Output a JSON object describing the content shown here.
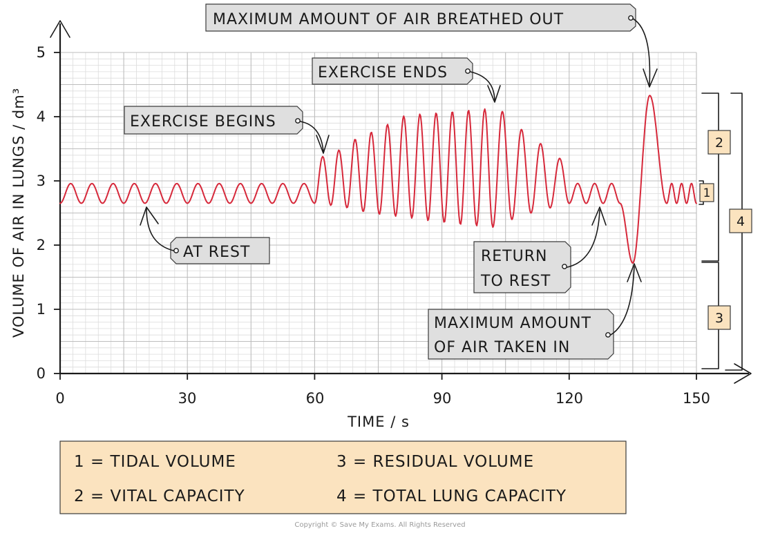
{
  "chart_data": {
    "type": "line",
    "xlabel": "TIME / s",
    "ylabel": "VOLUME OF AIR IN LUNGS / dm³",
    "xlim": [
      0,
      150
    ],
    "ylim": [
      0,
      5
    ],
    "x_ticks": [
      "0",
      "30",
      "60",
      "90",
      "120",
      "150"
    ],
    "y_ticks": [
      "0",
      "1",
      "2",
      "3",
      "4",
      "5"
    ],
    "grid": true,
    "line_color": "#d6283a",
    "series": [
      {
        "segments": [
          {
            "x0": 0,
            "x1": 60,
            "cycles": 12,
            "trough": 2.65,
            "peak": 2.96
          },
          {
            "x0": 60,
            "x1": 102,
            "peaks": [
              3.38,
              3.48,
              3.65,
              3.76,
              3.88,
              4.01,
              4.04,
              4.06,
              4.08,
              4.1,
              4.12
            ],
            "troughs": [
              2.62,
              2.58,
              2.52,
              2.48,
              2.45,
              2.42,
              2.38,
              2.35,
              2.32,
              2.3,
              2.28
            ]
          },
          {
            "x0": 102,
            "x1": 120,
            "peaks": [
              4.08,
              3.8,
              3.58,
              3.35
            ],
            "troughs": [
              2.4,
              2.5,
              2.58,
              2.65
            ]
          },
          {
            "x0": 120,
            "x1": 132,
            "cycles": 3,
            "trough": 2.65,
            "peak": 2.96
          },
          {
            "x0": 132,
            "x1": 135,
            "to": 1.72
          },
          {
            "x0": 135,
            "x1": 139,
            "to": 4.33
          },
          {
            "x0": 139,
            "x1": 143,
            "to": 2.65
          },
          {
            "x0": 143,
            "x1": 150,
            "cycles": 3,
            "trough": 2.65,
            "peak": 2.96
          }
        ]
      }
    ],
    "annotations": [
      {
        "text": "MAXIMUM AMOUNT OF AIR BREATHED OUT",
        "x": 139,
        "y": 4.33
      },
      {
        "text": "EXERCISE ENDS",
        "x": 102,
        "y": 4.12
      },
      {
        "text": "EXERCISE BEGINS",
        "x": 62,
        "y": 3.38
      },
      {
        "text": "AT REST",
        "x": 20,
        "y": 2.65
      },
      {
        "lines": [
          "RETURN",
          "TO REST"
        ],
        "x": 128,
        "y": 2.65
      },
      {
        "lines": [
          "MAXIMUM AMOUNT",
          "OF AIR TAKEN IN"
        ],
        "x": 135,
        "y": 1.72
      }
    ],
    "brackets": [
      {
        "label": "1",
        "from": 2.65,
        "to": 2.96
      },
      {
        "label": "2",
        "from": 1.72,
        "to": 4.33
      },
      {
        "label": "3",
        "from": 0,
        "to": 1.72
      },
      {
        "label": "4",
        "from": 0,
        "to": 4.33
      }
    ]
  },
  "key": {
    "fill": "#fbe3bf",
    "items": [
      "1 = TIDAL  VOLUME",
      "3 = RESIDUAL  VOLUME",
      "2 = VITAL  CAPACITY",
      "4 = TOTAL  LUNG  CAPACITY"
    ]
  },
  "copyright": "Copyright © Save My Exams. All Rights Reserved"
}
